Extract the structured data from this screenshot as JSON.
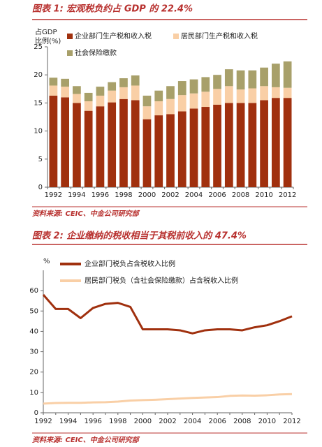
{
  "chart_data": [
    {
      "type": "bar",
      "stacked": true,
      "title": "图表 1: 宏观税负约占 GDP 的 22.4%",
      "ylabel": [
        "占GDP",
        "比例(%)"
      ],
      "source": "资料来源: CEIC、中金公司研究部",
      "categories": [
        "1992",
        null,
        "1994",
        null,
        "1996",
        null,
        "1998",
        null,
        "2000",
        null,
        "2002",
        null,
        "2004",
        null,
        "2006",
        null,
        "2008",
        null,
        "2010",
        null,
        "2012"
      ],
      "series": [
        {
          "name": "企业部门生产税和收入税",
          "color": "#a0300e",
          "values": [
            16.3,
            16.0,
            15.0,
            13.6,
            14.4,
            15.1,
            15.7,
            15.5,
            12.1,
            12.8,
            13.0,
            13.5,
            14.0,
            14.3,
            14.7,
            15.0,
            15.0,
            15.0,
            15.5,
            15.9,
            15.9
          ]
        },
        {
          "name": "居民部门生产税和收入税",
          "color": "#f9cfa6",
          "values": [
            1.8,
            1.9,
            1.6,
            1.7,
            1.9,
            2.1,
            2.1,
            2.6,
            2.3,
            2.5,
            2.7,
            2.9,
            2.7,
            2.7,
            2.8,
            3.0,
            2.4,
            2.6,
            2.5,
            1.9,
            1.8
          ]
        },
        {
          "name": "社会保险缴款",
          "color": "#a8a06a",
          "values": [
            1.4,
            1.4,
            1.4,
            1.5,
            1.6,
            1.5,
            1.6,
            1.8,
            1.9,
            1.9,
            2.3,
            2.5,
            2.5,
            2.6,
            2.5,
            3.0,
            3.4,
            3.2,
            3.3,
            4.2,
            4.7
          ]
        }
      ],
      "ylim": [
        0,
        25
      ],
      "yticks": [
        0,
        5,
        10,
        15,
        20,
        25
      ]
    },
    {
      "type": "line",
      "title": "图表 2: 企业缴纳的税收相当于其税前收入的 47.4%",
      "ylabel": "%",
      "source": "资料来源: CEIC、中金公司研究部",
      "categories": [
        "1992",
        null,
        "1994",
        null,
        "1996",
        null,
        "1998",
        null,
        "2000",
        null,
        "2002",
        null,
        "2004",
        null,
        "2006",
        null,
        "2008",
        null,
        "2010",
        null,
        "2012"
      ],
      "series": [
        {
          "name": "企业部门税负占含税收入比例",
          "color": "#a0300e",
          "values": [
            58,
            51,
            51,
            46.5,
            51.5,
            53.5,
            54,
            52,
            41,
            41,
            41,
            40.5,
            39,
            40.5,
            41,
            41,
            40.5,
            42,
            43,
            45,
            47.4
          ]
        },
        {
          "name": "居民部门税负（含社会保险缴款）占含税收入比例",
          "color": "#f9cfa6",
          "values": [
            4.5,
            4.8,
            4.9,
            4.9,
            5.1,
            5.2,
            5.5,
            6.0,
            6.2,
            6.4,
            6.7,
            7.0,
            7.3,
            7.5,
            7.7,
            8.3,
            8.5,
            8.4,
            8.6,
            9.0,
            9.2
          ]
        }
      ],
      "ylim": [
        0,
        70
      ],
      "yticks": [
        0,
        10,
        20,
        30,
        40,
        50,
        60
      ]
    }
  ]
}
